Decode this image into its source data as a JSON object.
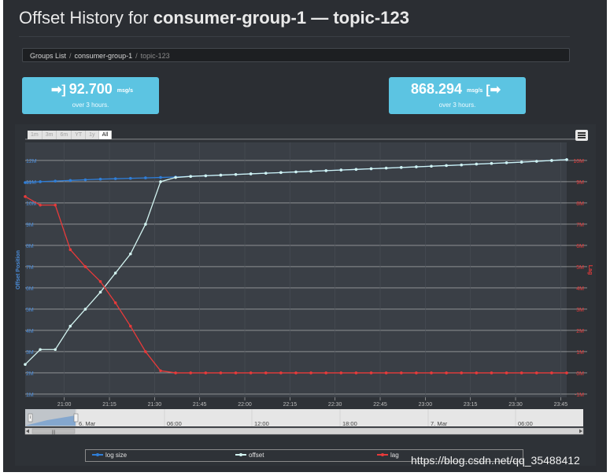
{
  "page": {
    "title_prefix": "Offset History for ",
    "group": "consumer-group-1",
    "dash": " — ",
    "topic": "topic-123"
  },
  "breadcrumb": {
    "item1": "Groups List",
    "item2": "consumer-group-1",
    "current": "topic-123",
    "sep": "/"
  },
  "stats": {
    "in": {
      "value": "92.700",
      "unit": "msg/s",
      "sub": "over 3 hours.",
      "icon": "sign-in-icon"
    },
    "out": {
      "value": "868.294",
      "unit": "msg/s",
      "sub": "over 3 hours.",
      "icon": "sign-out-icon"
    }
  },
  "zoom_buttons": [
    "1m",
    "3m",
    "6m",
    "YT",
    "1y",
    "All"
  ],
  "zoom_selected": "All",
  "legend": [
    "log size",
    "offset",
    "lag"
  ],
  "watermark": "https://blog.csdn.net/qq_35488412",
  "navigator": {
    "labels": [
      "6. Mar",
      "06:00",
      "12:00",
      "18:00",
      "7. Mar",
      "06:00"
    ],
    "left_handle": "i",
    "right_handle": "|||"
  },
  "colors": {
    "log_size": "#2f7ed8",
    "offset": "#d2f3f0",
    "lag": "#e83a3a",
    "stat_bg": "#5cc4e2"
  },
  "chart_data": {
    "type": "line",
    "x": [
      "20:47",
      "20:52",
      "20:57",
      "21:02",
      "21:07",
      "21:12",
      "21:17",
      "21:22",
      "21:27",
      "21:32",
      "21:37",
      "21:42",
      "21:47",
      "21:52",
      "21:57",
      "22:02",
      "22:07",
      "22:12",
      "22:17",
      "22:22",
      "22:27",
      "22:32",
      "22:37",
      "22:42",
      "22:47",
      "22:52",
      "22:57",
      "23:02",
      "23:07",
      "23:12",
      "23:17",
      "23:22",
      "23:27",
      "23:32",
      "23:37",
      "23:42",
      "23:47"
    ],
    "x_ticks": [
      "21:00",
      "21:15",
      "21:30",
      "21:45",
      "22:00",
      "22:15",
      "22:30",
      "22:45",
      "23:00",
      "23:15",
      "23:30",
      "23:45"
    ],
    "left_axis": {
      "title": "Offset Position",
      "ticks": [
        "1M",
        "2M",
        "3M",
        "4M",
        "5M",
        "6M",
        "7M",
        "8M",
        "9M",
        "10M",
        "11M",
        "12M"
      ],
      "range": [
        1,
        12
      ]
    },
    "right_axis": {
      "title": "Lag",
      "ticks": [
        "-1M",
        "0M",
        "1M",
        "2M",
        "3M",
        "4M",
        "5M",
        "6M",
        "7M",
        "8M",
        "9M",
        "10M"
      ],
      "range": [
        -1,
        10
      ]
    },
    "series": [
      {
        "name": "log size",
        "axis": "left",
        "values": [
          10.96,
          11.0,
          11.03,
          11.06,
          11.09,
          11.12,
          11.14,
          11.16,
          11.18,
          11.2,
          11.22,
          11.25,
          11.28,
          11.31,
          11.34,
          11.37,
          11.4,
          11.43,
          11.46,
          11.49,
          11.52,
          11.55,
          11.58,
          11.61,
          11.64,
          11.67,
          11.7,
          11.73,
          11.76,
          11.79,
          11.83,
          11.86,
          11.89,
          11.92,
          11.96,
          12.0,
          12.04
        ]
      },
      {
        "name": "offset",
        "axis": "left",
        "values": [
          2.4,
          3.1,
          3.1,
          4.2,
          5.0,
          5.8,
          6.7,
          7.6,
          9.0,
          11.0,
          11.2,
          11.25,
          11.28,
          11.31,
          11.34,
          11.37,
          11.4,
          11.43,
          11.46,
          11.49,
          11.52,
          11.55,
          11.58,
          11.61,
          11.64,
          11.67,
          11.7,
          11.73,
          11.76,
          11.79,
          11.83,
          11.86,
          11.89,
          11.92,
          11.96,
          12.0,
          12.04
        ]
      },
      {
        "name": "lag",
        "axis": "right",
        "values": [
          8.3,
          7.9,
          7.9,
          5.8,
          5.0,
          4.3,
          3.3,
          2.2,
          1.0,
          0.1,
          0.0,
          0.0,
          0.0,
          0.0,
          0.0,
          0.0,
          0.0,
          0.0,
          0.0,
          0.0,
          0.0,
          0.0,
          0.0,
          0.0,
          0.0,
          0.0,
          0.0,
          0.0,
          0.0,
          0.0,
          0.0,
          0.0,
          0.0,
          0.0,
          0.0,
          0.0,
          0.0
        ]
      }
    ],
    "grid": true,
    "legend_position": "bottom"
  }
}
